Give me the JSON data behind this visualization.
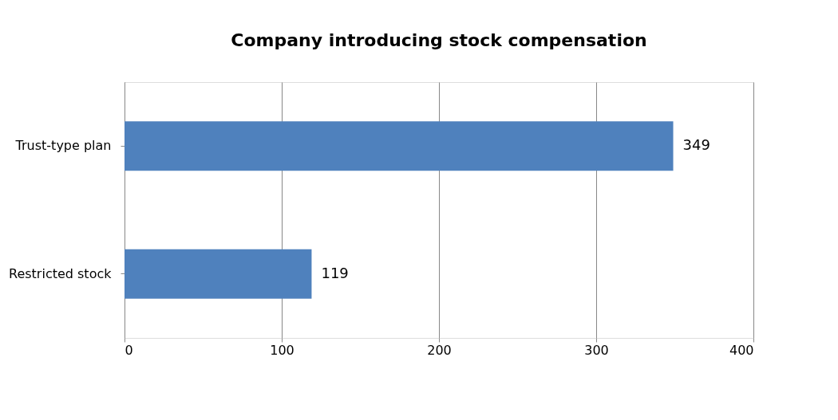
{
  "chart_data": {
    "type": "bar",
    "orientation": "horizontal",
    "title": "Company introducing stock compensation",
    "categories": [
      "Trust-type plan",
      "Restricted stock"
    ],
    "values": [
      349,
      119
    ],
    "color": "#4f81bd",
    "xlim": [
      0,
      400
    ],
    "xticks": [
      0,
      100,
      200,
      300,
      400
    ],
    "grid": "x",
    "data_labels": true
  }
}
